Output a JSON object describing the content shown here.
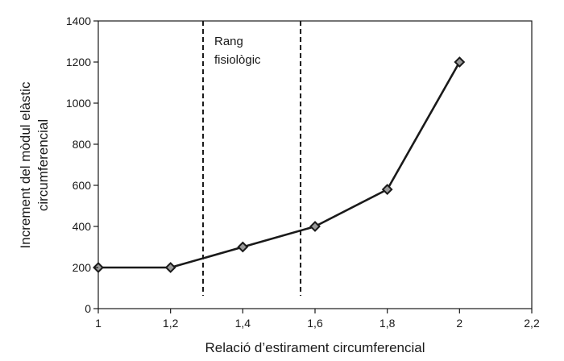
{
  "chart_data": {
    "type": "line",
    "title": "",
    "xlabel": "Relació d’estirament circumferencial",
    "ylabel_lines": [
      "Increment del mòdul elàstic",
      "circumferencial"
    ],
    "x": [
      1,
      1.2,
      1.4,
      1.6,
      1.8,
      2
    ],
    "series": [
      {
        "values": [
          200,
          200,
          300,
          400,
          580,
          1200
        ]
      }
    ],
    "xlim": [
      1,
      2.2
    ],
    "ylim": [
      0,
      1400
    ],
    "xticks": [
      1,
      1.2,
      1.4,
      1.6,
      1.8,
      2,
      2.2
    ],
    "xtick_labels": [
      "1",
      "1,2",
      "1,4",
      "1,6",
      "1,8",
      "2",
      "2,2"
    ],
    "yticks": [
      0,
      200,
      400,
      600,
      800,
      1000,
      1200,
      1400
    ],
    "ytick_labels": [
      "0",
      "200",
      "400",
      "600",
      "800",
      "1000",
      "1200",
      "1400"
    ],
    "grid": false,
    "reference_lines_x": [
      1.29,
      1.56
    ],
    "annotation_lines": [
      "Rang",
      "fisiològic"
    ],
    "colors": {
      "line": "#1a1a1a",
      "marker_fill": "#9a9a9a"
    }
  }
}
